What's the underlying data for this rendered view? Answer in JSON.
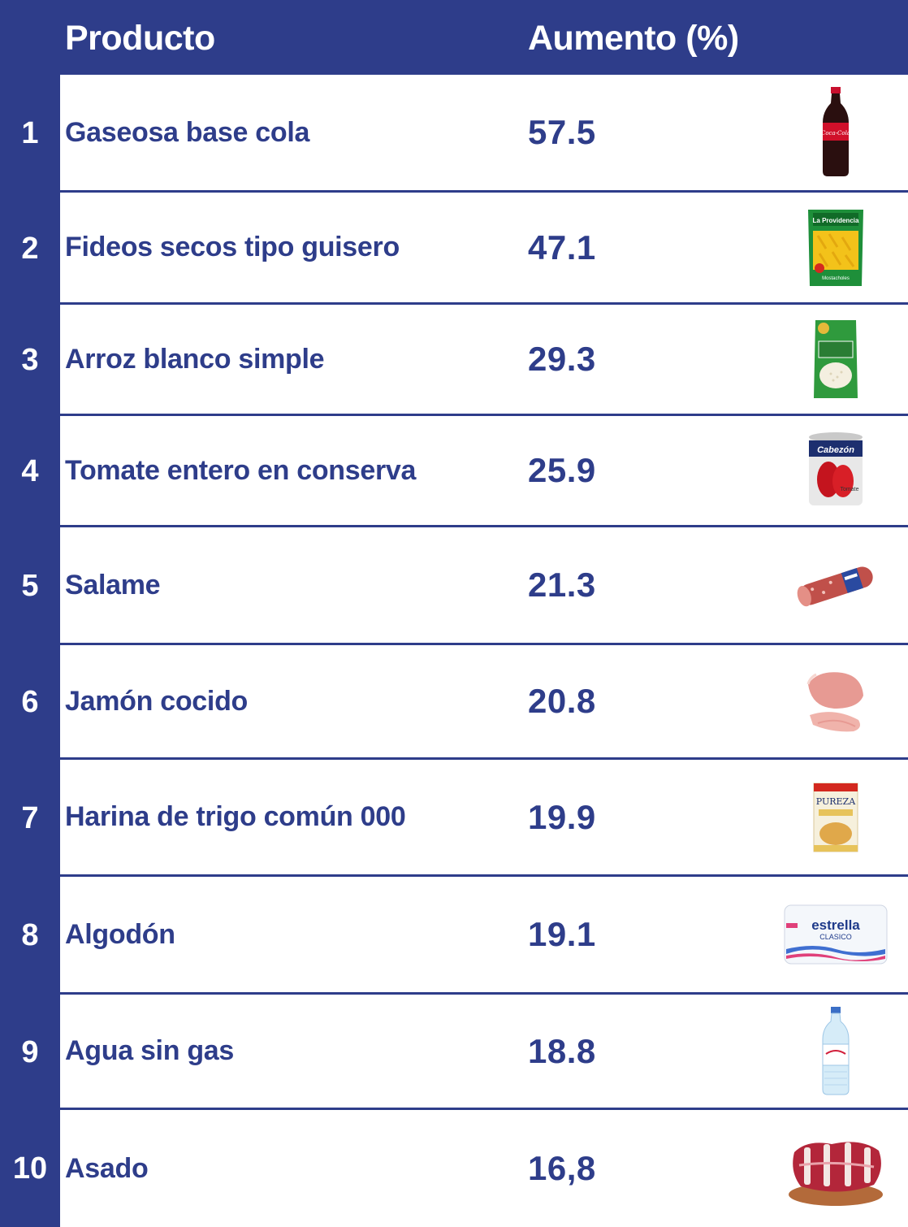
{
  "header": {
    "product": "Producto",
    "increase": "Aumento (%)"
  },
  "rows": [
    {
      "rank": "1",
      "product": "Gaseosa base cola",
      "increase": "57.5",
      "icon": "cola-bottle-icon"
    },
    {
      "rank": "2",
      "product": "Fideos secos tipo guisero",
      "increase": "47.1",
      "icon": "pasta-package-icon"
    },
    {
      "rank": "3",
      "product": "Arroz blanco simple",
      "increase": "29.3",
      "icon": "rice-package-icon"
    },
    {
      "rank": "4",
      "product": "Tomate entero en conserva",
      "increase": "25.9",
      "icon": "tomato-can-icon"
    },
    {
      "rank": "5",
      "product": "Salame",
      "increase": "21.3",
      "icon": "salami-icon"
    },
    {
      "rank": "6",
      "product": "Jamón cocido",
      "increase": "20.8",
      "icon": "ham-icon"
    },
    {
      "rank": "7",
      "product": "Harina de trigo común 000",
      "increase": "19.9",
      "icon": "flour-package-icon"
    },
    {
      "rank": "8",
      "product": "Algodón",
      "increase": "19.1",
      "icon": "cotton-package-icon"
    },
    {
      "rank": "9",
      "product": "Agua sin gas",
      "increase": "18.8",
      "icon": "water-bottle-icon"
    },
    {
      "rank": "10",
      "product": "Asado",
      "increase": "16,8",
      "icon": "beef-ribs-icon"
    }
  ],
  "labels": {
    "pasta_brand": "La Providencia",
    "pasta_variety": "Mostacholes",
    "tomato_brand": "Cabezón",
    "tomato_label": "Tomate",
    "flour_brand": "PUREZA",
    "cotton_brand": "estrella",
    "cotton_variety": "CLASICO",
    "cola_brand": "Coca-Cola"
  },
  "colors": {
    "navy": "#2e3d8a",
    "white": "#ffffff"
  }
}
